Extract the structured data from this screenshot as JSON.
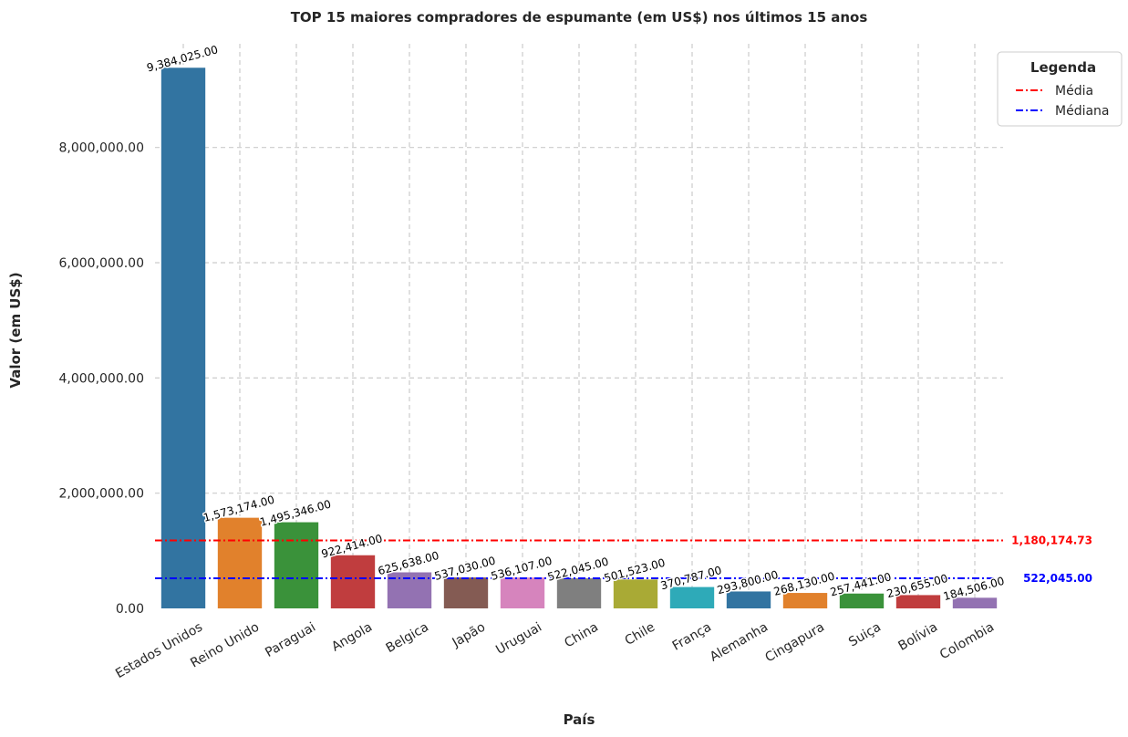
{
  "chart_data": {
    "type": "bar",
    "title": "TOP 15 maiores compradores de espumante (em US$) nos últimos 15 anos",
    "xlabel": "País",
    "ylabel": "Valor (em US$)",
    "categories": [
      "Estados Unidos",
      "Reino Unido",
      "Paraguai",
      "Angola",
      "Belgica",
      "Japão",
      "Uruguai",
      "China",
      "Chile",
      "França",
      "Alemanha",
      "Cingapura",
      "Suiça",
      "Bolívia",
      "Colombia"
    ],
    "values": [
      9384025,
      1573174,
      1495346,
      922414,
      625638,
      537030,
      536107,
      522045,
      501523,
      370787,
      293800,
      268130,
      257441,
      230655,
      184506
    ],
    "value_labels": [
      "9,384,025.00",
      "1,573,174.00",
      "1,495,346.00",
      "922,414.00",
      "625,638.00",
      "537,030.00",
      "536,107.00",
      "522,045.00",
      "501,523.00",
      "370,787.00",
      "293,800.00",
      "268,130.00",
      "257,441.00",
      "230,655.00",
      "184,506.00"
    ],
    "colors": [
      "#3274a1",
      "#e1812c",
      "#3a923a",
      "#c03d3e",
      "#9372b2",
      "#845b53",
      "#d684bd",
      "#7f7f7f",
      "#a9aa35",
      "#2eaab8",
      "#3274a1",
      "#e1812c",
      "#3a923a",
      "#c03d3e",
      "#9372b2"
    ],
    "ylim": [
      0,
      9800000
    ],
    "y_ticks": [
      0,
      2000000,
      4000000,
      6000000,
      8000000
    ],
    "y_tick_labels": [
      "0.00",
      "2,000,000.00",
      "4,000,000.00",
      "6,000,000.00",
      "8,000,000.00"
    ],
    "grid": true,
    "reference_lines": [
      {
        "name": "Média",
        "value": 1180174.73,
        "label": "1,180,174.73",
        "color": "#ff0000",
        "style": "dash-dot"
      },
      {
        "name": "Médiana",
        "value": 522045.0,
        "label": "522,045.00",
        "color": "#0000ff",
        "style": "dash-dot"
      }
    ],
    "legend": {
      "title": "Legenda",
      "position": "top-right"
    }
  }
}
